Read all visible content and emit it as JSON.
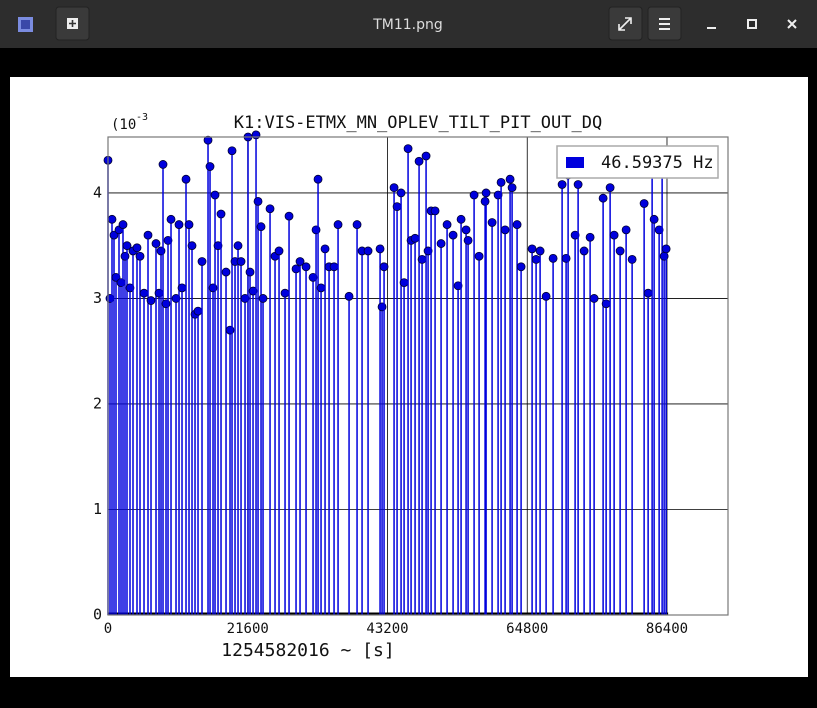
{
  "window": {
    "title": "TM11.png"
  },
  "chart_data": {
    "type": "stem",
    "title": "K1:VIS-ETMX_MN_OPLEV_TILT_PIT_OUT_DQ",
    "y_scale_prefix": "(10",
    "y_scale_exponent": "-3",
    "xlabel": "1254582016 ~ [s]",
    "xlim": [
      0,
      95830
    ],
    "ylim": [
      0,
      4.53
    ],
    "xticks": [
      0,
      21600,
      43200,
      64800,
      86400
    ],
    "yticks": [
      0,
      1,
      2,
      3,
      4
    ],
    "grid": true,
    "legend": "upper right",
    "series": [
      {
        "name": "46.59375 Hz",
        "color": "#0000dd",
        "x": [
          0,
          309,
          618,
          928,
          1237,
          1701,
          2010,
          2319,
          2628,
          2937,
          3401,
          3865,
          4483,
          4947,
          5566,
          6184,
          6648,
          7421,
          7885,
          8194,
          8503,
          8967,
          9276,
          9740,
          10513,
          10977,
          11440,
          12059,
          12523,
          12986,
          13450,
          13914,
          14532,
          15460,
          15769,
          16233,
          16542,
          17006,
          17470,
          18243,
          18861,
          19170,
          19634,
          20098,
          20562,
          21180,
          21644,
          21953,
          22417,
          22881,
          23190,
          23654,
          23963,
          25045,
          25818,
          26437,
          27364,
          27983,
          29065,
          29683,
          30611,
          31693,
          32157,
          32466,
          32930,
          33548,
          34167,
          34940,
          35558,
          37259,
          38495,
          39268,
          40196,
          42051,
          42360,
          42670,
          44216,
          44679,
          45298,
          45762,
          46380,
          46844,
          47462,
          48081,
          48544,
          49163,
          49472,
          49936,
          50554,
          51482,
          52409,
          53337,
          54110,
          54574,
          55347,
          55656,
          56584,
          57357,
          58284,
          58439,
          59366,
          60294,
          60758,
          61376,
          62149,
          62458,
          63231,
          63850,
          65550,
          66169,
          66787,
          67715,
          68797,
          70188,
          70807,
          71116,
          72198,
          72662,
          73590,
          74517,
          75136,
          76527,
          76991,
          77609,
          78228,
          79155,
          80083,
          81010,
          82866,
          83484,
          84102,
          84412,
          85185,
          85648,
          85958,
          86267
        ],
        "values": [
          4.31,
          3.0,
          3.75,
          3.6,
          3.2,
          3.65,
          3.15,
          3.7,
          3.4,
          3.5,
          3.1,
          3.45,
          3.48,
          3.4,
          3.05,
          3.6,
          2.98,
          3.52,
          3.05,
          3.45,
          4.27,
          2.95,
          3.55,
          3.75,
          3.0,
          3.7,
          3.1,
          4.13,
          3.7,
          3.5,
          2.85,
          2.88,
          3.35,
          4.5,
          4.25,
          3.1,
          3.98,
          3.5,
          3.8,
          3.25,
          2.7,
          4.4,
          3.35,
          3.5,
          3.35,
          3.0,
          4.53,
          3.25,
          3.07,
          4.55,
          3.92,
          3.68,
          3.0,
          3.85,
          3.4,
          3.45,
          3.05,
          3.78,
          3.28,
          3.35,
          3.3,
          3.2,
          3.65,
          4.13,
          3.1,
          3.47,
          3.3,
          3.3,
          3.7,
          3.02,
          3.7,
          3.45,
          3.45,
          3.47,
          2.92,
          3.3,
          4.05,
          3.87,
          4.0,
          3.15,
          4.42,
          3.55,
          3.57,
          4.3,
          3.37,
          4.35,
          3.45,
          3.83,
          3.83,
          3.52,
          3.7,
          3.6,
          3.12,
          3.75,
          3.65,
          3.55,
          3.98,
          3.4,
          3.92,
          4.0,
          3.72,
          3.98,
          4.1,
          3.65,
          4.13,
          4.05,
          3.7,
          3.3,
          3.47,
          3.37,
          3.45,
          3.02,
          3.38,
          4.08,
          3.38,
          4.17,
          3.6,
          4.08,
          3.45,
          3.58,
          3.0,
          3.95,
          2.95,
          4.05,
          3.6,
          3.45,
          3.65,
          3.37,
          3.9,
          3.05,
          4.2,
          3.75,
          3.65,
          4.4,
          3.4,
          3.47
        ]
      }
    ]
  }
}
